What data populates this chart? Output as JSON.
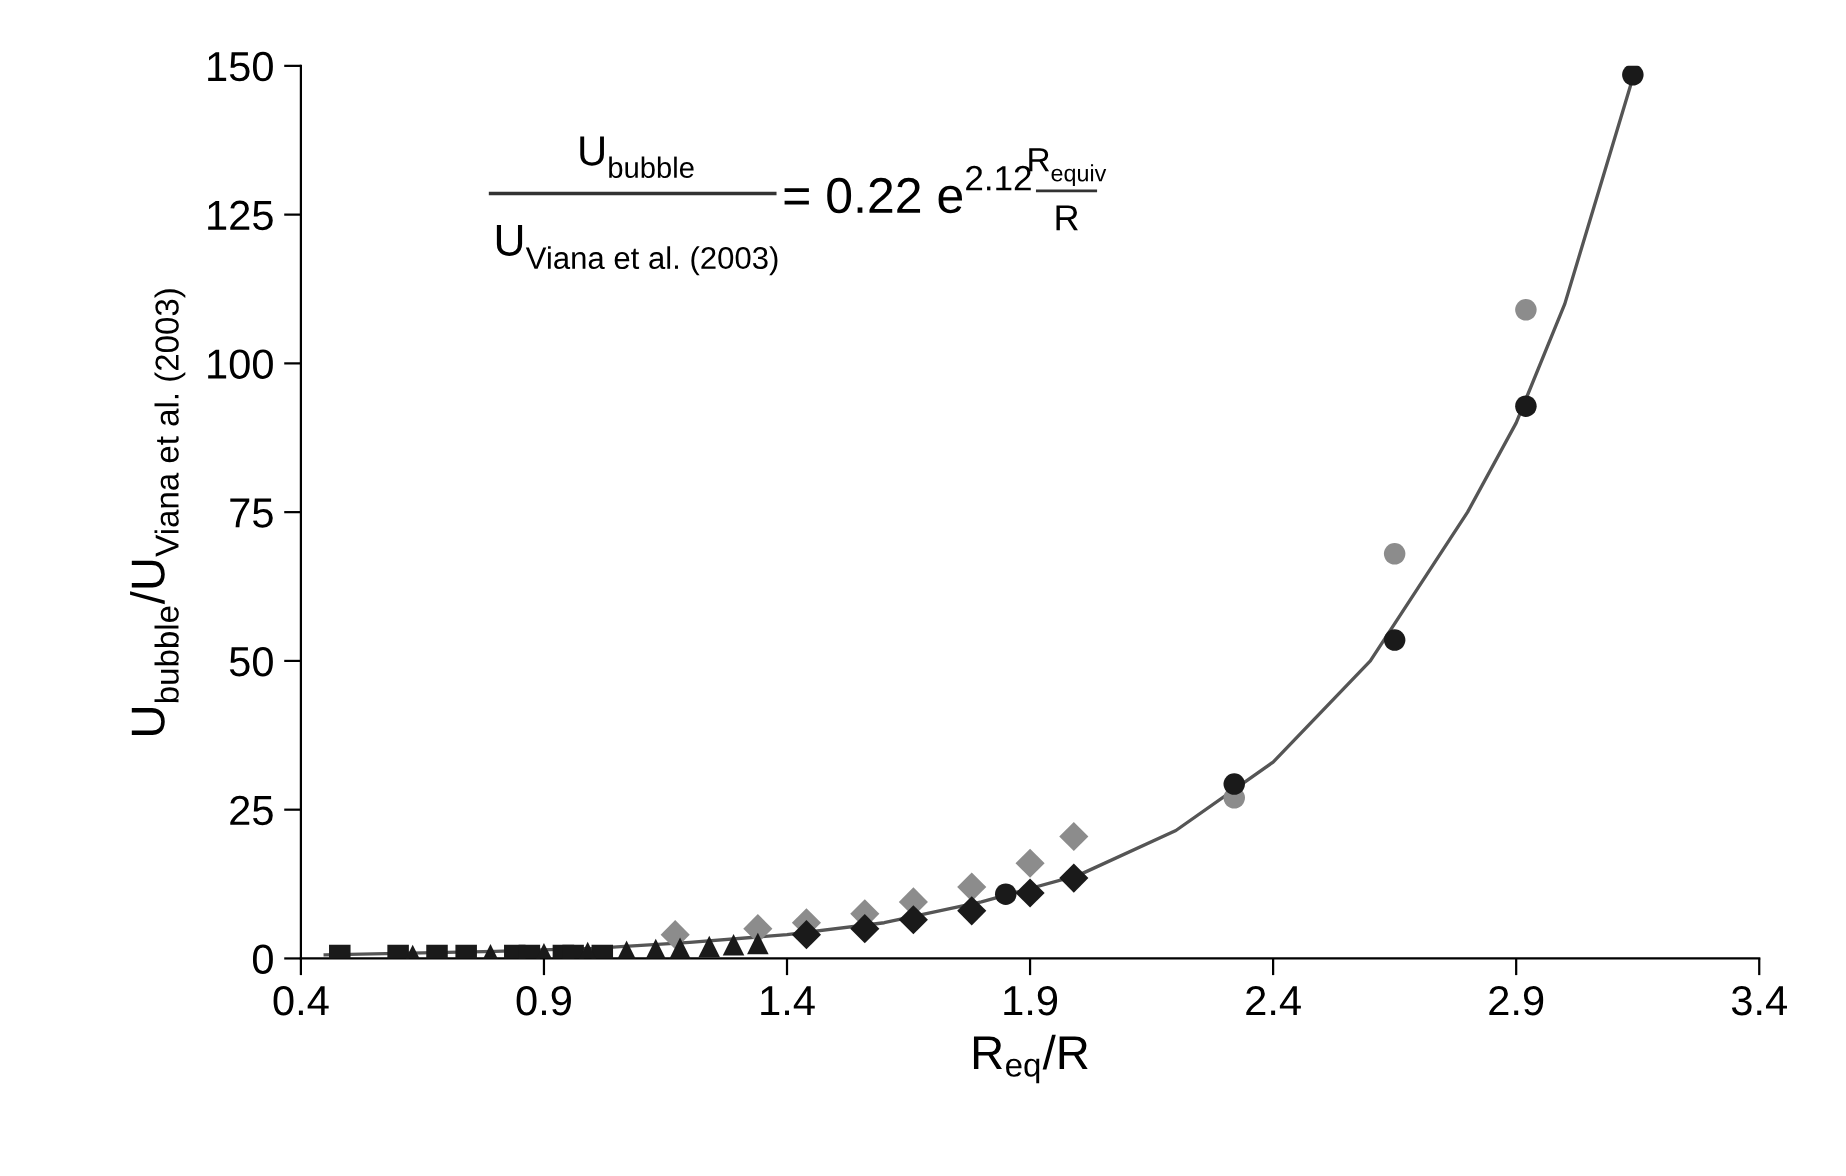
{
  "chart_data": {
    "type": "scatter",
    "xlabel": "R$_{eq}$/R",
    "ylabel": "U$_{bubble}$/U$_{Viana et al. (2003)}$",
    "xlim": [
      0.4,
      3.4
    ],
    "xticks": [
      0.4,
      0.9,
      1.4,
      1.9,
      2.4,
      2.9,
      3.4
    ],
    "ylim": [
      0,
      150
    ],
    "yticks": [
      0,
      25,
      50,
      75,
      100,
      125,
      150
    ],
    "grid": false,
    "legend": false,
    "annotations": [
      "U$_{bubble}$",
      "U$_{Viana et al. (2003)}$",
      "= 0.22 e$^{2.12}$",
      "R$_{equiv}$",
      "R"
    ],
    "series": [
      {
        "type": "line",
        "color": "#555555",
        "marker": "none",
        "line_style": "solid",
        "x": [
          0.45,
          0.8,
          1.0,
          1.2,
          1.4,
          1.6,
          1.8,
          2.0,
          2.2,
          2.4,
          2.6,
          2.8,
          2.9,
          3.0,
          3.14
        ],
        "values": [
          0.6,
          1.2,
          1.7,
          2.7,
          4,
          6,
          9.5,
          14,
          21.5,
          33,
          50,
          75,
          90,
          110,
          148
        ]
      },
      {
        "color": "#1a1a1a",
        "marker": "square",
        "x": [
          0.48,
          0.6,
          0.68,
          0.74,
          0.84,
          0.87,
          0.94,
          0.96,
          1.02
        ],
        "values": [
          0.5,
          0.5,
          0.5,
          0.5,
          0.5,
          0.5,
          0.5,
          0.5,
          0.5
        ]
      },
      {
        "color": "#1a1a1a",
        "marker": "triangle",
        "x": [
          0.63,
          0.79,
          0.9,
          0.99,
          1.07,
          1.13,
          1.18,
          1.24,
          1.29,
          1.34
        ],
        "values": [
          0.5,
          0.6,
          0.8,
          1,
          1.2,
          1.5,
          1.7,
          2,
          2.3,
          2.5
        ]
      },
      {
        "color": "#8c8c8c",
        "marker": "diamond",
        "x": [
          1.17,
          1.34,
          1.44,
          1.56,
          1.66,
          1.78,
          1.9,
          1.99
        ],
        "values": [
          4,
          5,
          6,
          7.5,
          9.5,
          12,
          16,
          20.5
        ]
      },
      {
        "color": "#1a1a1a",
        "marker": "diamond",
        "x": [
          1.44,
          1.56,
          1.66,
          1.78,
          1.9,
          1.99
        ],
        "values": [
          4,
          5,
          6.5,
          8,
          11,
          13.5
        ]
      },
      {
        "color": "#8c8c8c",
        "marker": "circle",
        "x": [
          2.32,
          2.65,
          2.92
        ],
        "values": [
          27,
          68,
          109
        ]
      },
      {
        "color": "#1a1a1a",
        "marker": "circle",
        "x": [
          1.85,
          2.32,
          2.65,
          2.92,
          3.14
        ],
        "values": [
          10.8,
          29.3,
          53.5,
          92.8,
          148.5
        ]
      }
    ]
  }
}
